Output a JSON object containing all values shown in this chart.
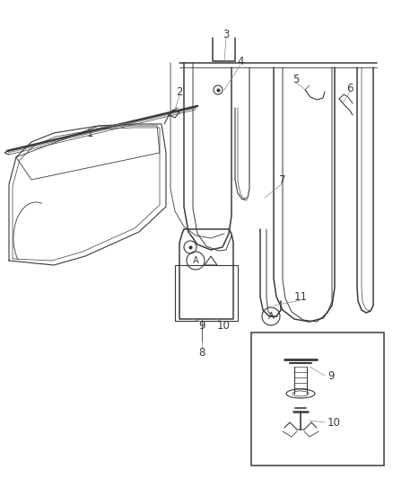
{
  "bg_color": "#ffffff",
  "line_color": "#3a3a3a",
  "label_color": "#3a3a3a",
  "fig_width": 4.38,
  "fig_height": 5.33,
  "dpi": 100
}
